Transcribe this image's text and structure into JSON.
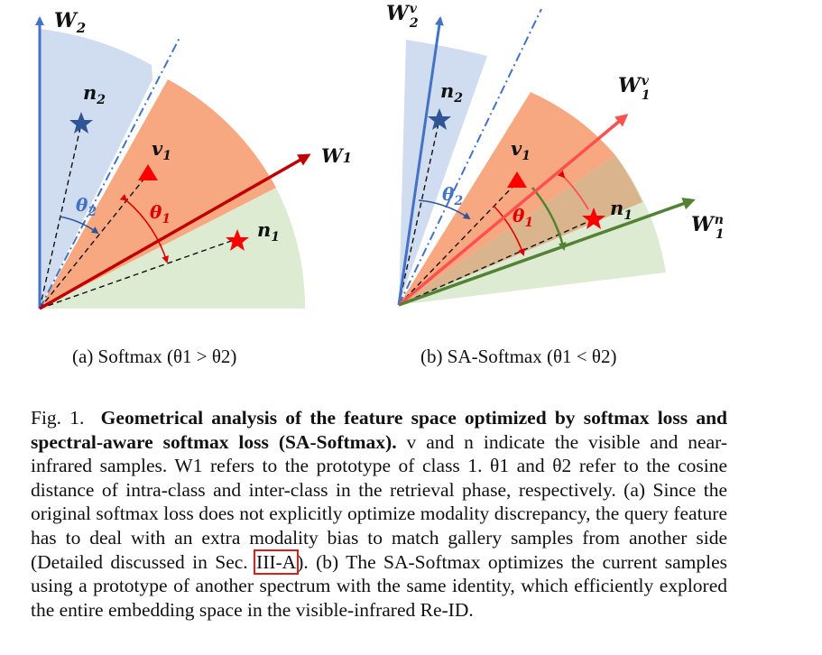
{
  "panel_a": {
    "labels": {
      "w2": "W",
      "w2_sub": "2",
      "w1": "W",
      "w1_sub": "1",
      "n2": "n",
      "n2_sub": "2",
      "v1": "v",
      "v1_sub": "1",
      "n1": "n",
      "n1_sub": "1",
      "theta2": "θ",
      "theta2_sub": "2",
      "theta1": "θ",
      "theta1_sub": "1"
    },
    "caption": "(a) Softmax (θ1 > θ2)"
  },
  "panel_b": {
    "labels": {
      "w2v": "W",
      "w2v_sub": "2",
      "w2v_sup": "v",
      "w1v": "W",
      "w1v_sub": "1",
      "w1v_sup": "v",
      "w1n": "W",
      "w1n_sub": "1",
      "w1n_sup": "n",
      "n2": "n",
      "n2_sub": "2",
      "v1": "v",
      "v1_sub": "1",
      "n1": "n",
      "n1_sub": "1",
      "theta2": "θ",
      "theta2_sub": "2",
      "theta1": "θ",
      "theta1_sub": "1"
    },
    "caption": "(b) SA-Softmax (θ1 < θ2)"
  },
  "caption": {
    "prefix": "Fig. 1.",
    "bold": "Geometrical analysis of the feature space optimized by softmax loss and spectral-aware softmax loss (SA-Softmax).",
    "text_before_ref": "v and n indicate the visible and near-infrared samples. W1 refers to the prototype of class 1. θ1 and θ2 refer to the cosine distance of intra-class and inter-class in the retrieval phase, respectively. (a) Since the original softmax loss does not explicitly optimize modality discrepancy, the query feature has to deal with an extra modality bias to match gallery samples from another side (Detailed discussed in Sec.",
    "ref": "III-A",
    "text_after_ref": "). (b) The SA-Softmax optimizes the current samples using a prototype of another spectrum with the same identity, which efficiently explored the entire embedding space in the visible-infrared Re-ID."
  },
  "colors": {
    "blue": "#4472c4",
    "light_blue": "#d0dcf0",
    "red": "#c00000",
    "bright_red": "#ff0000",
    "salmon": "#f8a880",
    "green": "#548235",
    "light_green": "#dcebd2",
    "mixed": "#d9b48c",
    "ref_box": "#e31a1a"
  }
}
